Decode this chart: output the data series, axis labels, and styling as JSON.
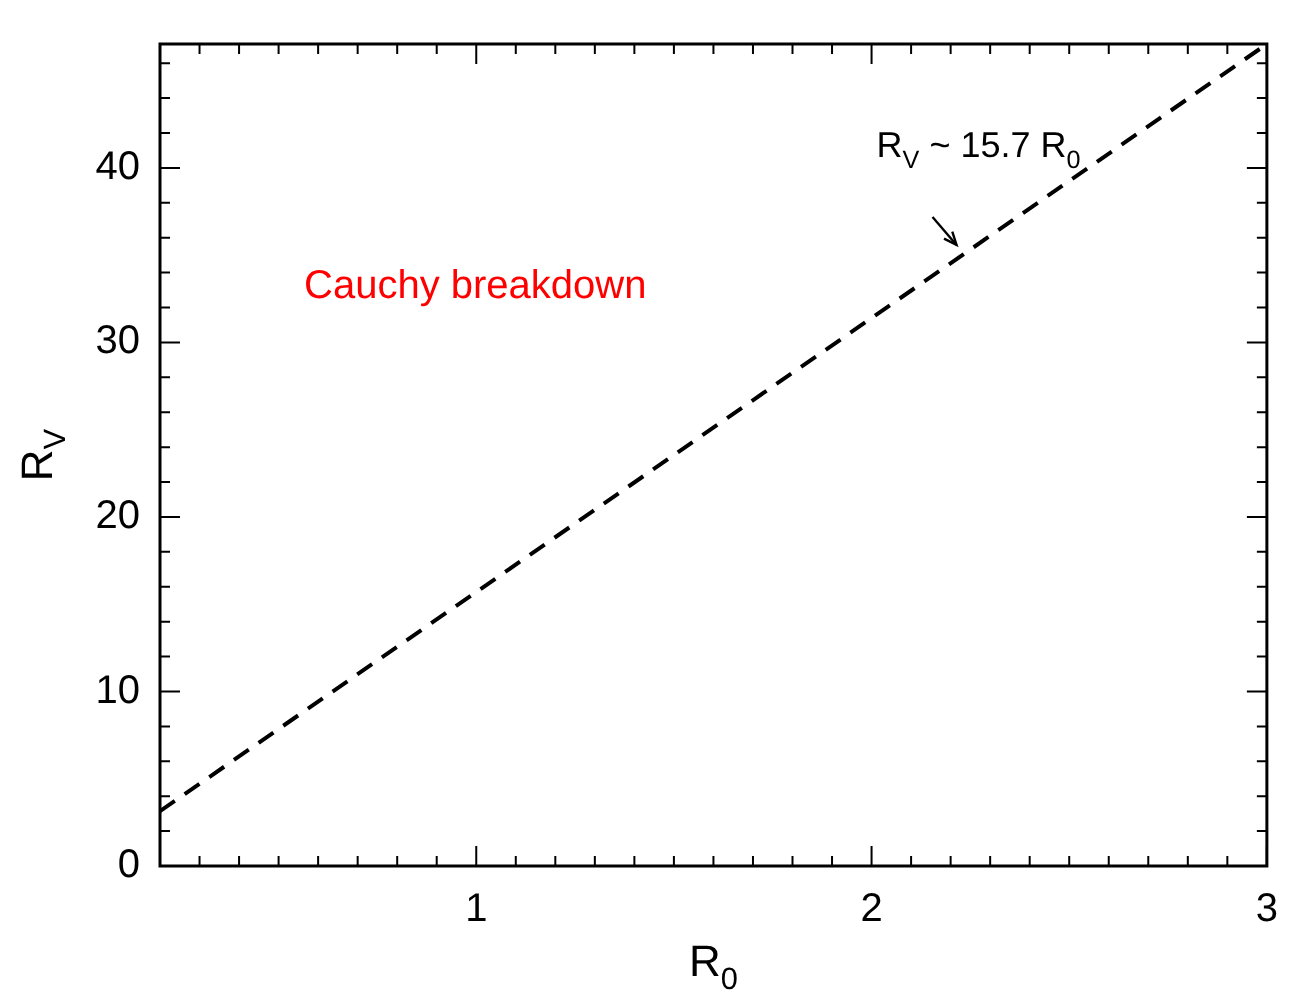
{
  "chart_data": {
    "type": "line",
    "xlabel": "R$_{0}$",
    "ylabel": "R$_{V}$",
    "xlim": [
      0.2,
      3
    ],
    "ylim": [
      0,
      47.1
    ],
    "xticks": [
      {
        "value": 0.3,
        "label": null
      },
      {
        "value": 0.4,
        "label": null
      },
      {
        "value": 0.5,
        "label": null
      },
      {
        "value": 0.6,
        "label": null
      },
      {
        "value": 0.7,
        "label": null
      },
      {
        "value": 0.8,
        "label": null
      },
      {
        "value": 0.9,
        "label": null
      },
      1,
      {
        "value": 1.1,
        "label": null
      },
      {
        "value": 1.2,
        "label": null
      },
      {
        "value": 1.3,
        "label": null
      },
      {
        "value": 1.4,
        "label": null
      },
      {
        "value": 1.5,
        "label": null
      },
      {
        "value": 1.6,
        "label": null
      },
      {
        "value": 1.7,
        "label": null
      },
      {
        "value": 1.8,
        "label": null
      },
      {
        "value": 1.9,
        "label": null
      },
      2,
      {
        "value": 2.1,
        "label": null
      },
      {
        "value": 2.2,
        "label": null
      },
      {
        "value": 2.3,
        "label": null
      },
      {
        "value": 2.4,
        "label": null
      },
      {
        "value": 2.5,
        "label": null
      },
      {
        "value": 2.6,
        "label": null
      },
      {
        "value": 2.7,
        "label": null
      },
      {
        "value": 2.8,
        "label": null
      },
      {
        "value": 2.9,
        "label": null
      },
      3
    ],
    "yticks": [
      0,
      {
        "value": 2,
        "label": null
      },
      {
        "value": 4,
        "label": null
      },
      {
        "value": 6,
        "label": null
      },
      {
        "value": 8,
        "label": null
      },
      10,
      {
        "value": 12,
        "label": null
      },
      {
        "value": 14,
        "label": null
      },
      {
        "value": 16,
        "label": null
      },
      {
        "value": 18,
        "label": null
      },
      20,
      {
        "value": 22,
        "label": null
      },
      {
        "value": 24,
        "label": null
      },
      {
        "value": 26,
        "label": null
      },
      {
        "value": 28,
        "label": null
      },
      30,
      {
        "value": 32,
        "label": null
      },
      {
        "value": 34,
        "label": null
      },
      {
        "value": 36,
        "label": null
      },
      {
        "value": 38,
        "label": null
      },
      40,
      {
        "value": 42,
        "label": null
      },
      {
        "value": 44,
        "label": null
      },
      {
        "value": 46,
        "label": null
      }
    ],
    "line_style": "dashed",
    "legend": false,
    "grid": false,
    "series": [
      {
        "color": "#000000",
        "x": [
          0.2,
          3
        ],
        "values": [
          3.14,
          47.1
        ]
      }
    ],
    "annotations": [
      "Cauchy breakdown",
      {
        "text": "R$_{V}$ ~ 15.7 R$_{0}$",
        "x": 2.22,
        "y": 34.9
      }
    ]
  }
}
